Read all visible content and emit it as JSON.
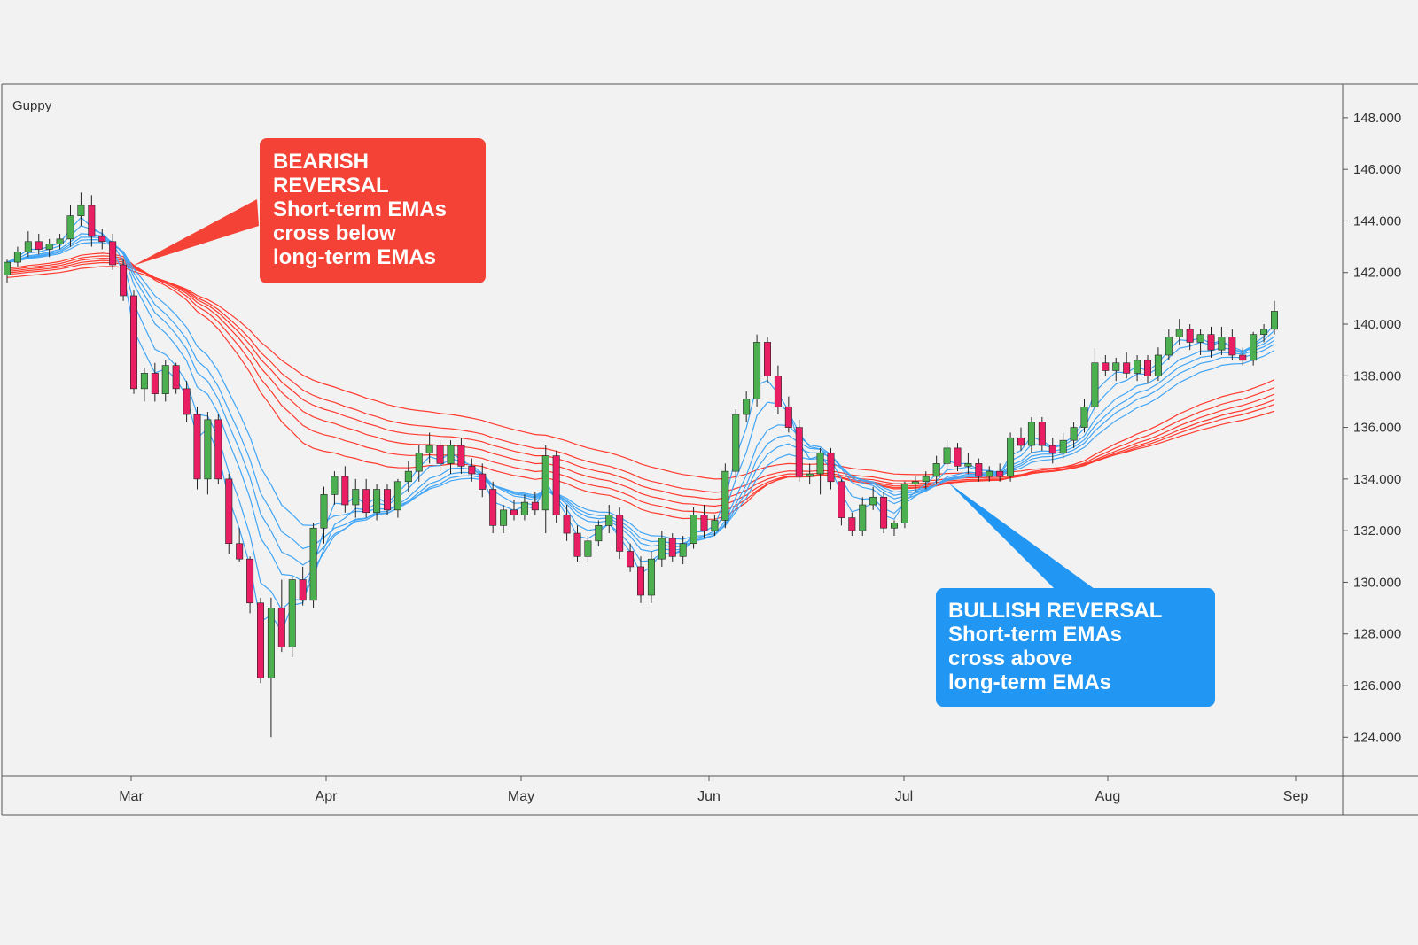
{
  "chart_data": {
    "type": "candlestick",
    "title": "Guppy",
    "y_axis": {
      "ticks": [
        "148.000",
        "146.000",
        "144.000",
        "142.000",
        "140.000",
        "138.000",
        "136.000",
        "134.000",
        "132.000",
        "130.000",
        "128.000",
        "126.000",
        "124.000"
      ],
      "range": [
        122.5,
        149.3
      ]
    },
    "x_axis": {
      "ticks": [
        "Mar",
        "Apr",
        "May",
        "Jun",
        "Jul",
        "Aug",
        "Sep"
      ]
    },
    "ohlc_estimated_daily": [
      [
        141.9,
        142.5,
        141.6,
        142.4
      ],
      [
        142.4,
        143.0,
        142.2,
        142.8
      ],
      [
        142.8,
        143.6,
        142.6,
        143.2
      ],
      [
        143.2,
        143.5,
        142.7,
        142.9
      ],
      [
        142.9,
        143.3,
        142.6,
        143.1
      ],
      [
        143.1,
        143.5,
        142.9,
        143.3
      ],
      [
        143.3,
        144.6,
        143.0,
        144.2
      ],
      [
        144.2,
        145.1,
        143.8,
        144.6
      ],
      [
        144.6,
        145.0,
        143.0,
        143.4
      ],
      [
        143.4,
        143.7,
        142.9,
        143.2
      ],
      [
        143.2,
        143.5,
        142.1,
        142.3
      ],
      [
        142.3,
        142.5,
        140.9,
        141.1
      ],
      [
        141.1,
        141.3,
        137.3,
        137.5
      ],
      [
        137.5,
        138.3,
        137.0,
        138.1
      ],
      [
        138.1,
        138.5,
        137.0,
        137.3
      ],
      [
        137.3,
        138.6,
        137.0,
        138.4
      ],
      [
        138.4,
        138.5,
        137.3,
        137.5
      ],
      [
        137.5,
        137.8,
        136.2,
        136.5
      ],
      [
        136.5,
        136.8,
        133.6,
        134.0
      ],
      [
        134.0,
        136.6,
        133.4,
        136.3
      ],
      [
        136.3,
        136.5,
        133.8,
        134.0
      ],
      [
        134.0,
        134.2,
        131.1,
        131.5
      ],
      [
        131.5,
        132.1,
        130.8,
        130.9
      ],
      [
        130.9,
        131.0,
        128.8,
        129.2
      ],
      [
        129.2,
        129.4,
        126.1,
        126.3
      ],
      [
        126.3,
        129.4,
        124.0,
        129.0
      ],
      [
        129.0,
        130.1,
        127.3,
        127.5
      ],
      [
        127.5,
        130.2,
        127.1,
        130.1
      ],
      [
        130.1,
        130.6,
        129.1,
        129.3
      ],
      [
        129.3,
        132.3,
        129.0,
        132.1
      ],
      [
        132.1,
        133.7,
        131.5,
        133.4
      ],
      [
        133.4,
        134.3,
        133.0,
        134.1
      ],
      [
        134.1,
        134.5,
        132.7,
        133.0
      ],
      [
        133.0,
        134.0,
        132.5,
        133.6
      ],
      [
        133.6,
        134.0,
        132.5,
        132.7
      ],
      [
        132.7,
        133.8,
        132.4,
        133.6
      ],
      [
        133.6,
        133.8,
        132.6,
        132.8
      ],
      [
        132.8,
        134.0,
        132.5,
        133.9
      ],
      [
        133.9,
        134.7,
        133.5,
        134.3
      ],
      [
        134.3,
        135.3,
        133.9,
        135.0
      ],
      [
        135.0,
        135.8,
        134.6,
        135.3
      ],
      [
        135.3,
        135.5,
        134.3,
        134.6
      ],
      [
        134.6,
        135.5,
        134.2,
        135.3
      ],
      [
        135.3,
        135.6,
        134.2,
        134.5
      ],
      [
        134.5,
        134.8,
        133.9,
        134.2
      ],
      [
        134.2,
        134.6,
        133.3,
        133.6
      ],
      [
        133.6,
        133.9,
        131.9,
        132.2
      ],
      [
        132.2,
        133.0,
        131.9,
        132.8
      ],
      [
        132.8,
        133.2,
        132.4,
        132.6
      ],
      [
        132.6,
        133.4,
        132.4,
        133.1
      ],
      [
        133.1,
        133.5,
        132.6,
        132.8
      ],
      [
        132.8,
        135.3,
        131.9,
        134.9
      ],
      [
        134.9,
        135.1,
        132.3,
        132.6
      ],
      [
        132.6,
        133.0,
        131.6,
        131.9
      ],
      [
        131.9,
        132.2,
        130.8,
        131.0
      ],
      [
        131.0,
        131.8,
        130.8,
        131.6
      ],
      [
        131.6,
        132.4,
        131.4,
        132.2
      ],
      [
        132.2,
        133.0,
        131.9,
        132.6
      ],
      [
        132.6,
        132.9,
        130.9,
        131.2
      ],
      [
        131.2,
        131.5,
        130.4,
        130.6
      ],
      [
        130.6,
        131.0,
        129.2,
        129.5
      ],
      [
        129.5,
        131.2,
        129.2,
        130.9
      ],
      [
        130.9,
        132.0,
        130.6,
        131.7
      ],
      [
        131.7,
        131.9,
        130.8,
        131.0
      ],
      [
        131.0,
        131.8,
        130.7,
        131.5
      ],
      [
        131.5,
        132.9,
        131.3,
        132.6
      ],
      [
        132.6,
        133.0,
        131.7,
        132.0
      ],
      [
        132.0,
        132.6,
        131.8,
        132.4
      ],
      [
        132.4,
        134.6,
        132.1,
        134.3
      ],
      [
        134.3,
        136.7,
        134.0,
        136.5
      ],
      [
        136.5,
        137.4,
        136.2,
        137.1
      ],
      [
        137.1,
        139.6,
        136.8,
        139.3
      ],
      [
        139.3,
        139.5,
        137.7,
        138.0
      ],
      [
        138.0,
        138.4,
        136.5,
        136.8
      ],
      [
        136.8,
        137.2,
        135.8,
        136.0
      ],
      [
        136.0,
        136.3,
        133.9,
        134.1
      ],
      [
        134.1,
        134.6,
        133.8,
        134.2
      ],
      [
        134.2,
        135.2,
        133.4,
        135.0
      ],
      [
        135.0,
        135.2,
        133.6,
        133.9
      ],
      [
        133.9,
        134.0,
        132.2,
        132.5
      ],
      [
        132.5,
        132.7,
        131.8,
        132.0
      ],
      [
        132.0,
        133.3,
        131.8,
        133.0
      ],
      [
        133.0,
        133.7,
        132.8,
        133.3
      ],
      [
        133.3,
        133.5,
        131.9,
        132.1
      ],
      [
        132.1,
        132.4,
        131.8,
        132.3
      ],
      [
        132.3,
        133.9,
        132.1,
        133.8
      ],
      [
        133.8,
        134.1,
        133.5,
        133.9
      ],
      [
        133.9,
        134.3,
        133.6,
        134.1
      ],
      [
        134.1,
        134.9,
        133.8,
        134.6
      ],
      [
        134.6,
        135.5,
        134.4,
        135.2
      ],
      [
        135.2,
        135.4,
        134.3,
        134.5
      ],
      [
        134.5,
        135.0,
        134.2,
        134.6
      ],
      [
        134.6,
        134.8,
        133.9,
        134.1
      ],
      [
        134.1,
        134.5,
        133.9,
        134.3
      ],
      [
        134.3,
        134.6,
        133.9,
        134.1
      ],
      [
        134.1,
        135.8,
        133.9,
        135.6
      ],
      [
        135.6,
        136.0,
        135.1,
        135.3
      ],
      [
        135.3,
        136.4,
        135.0,
        136.2
      ],
      [
        136.2,
        136.4,
        135.1,
        135.3
      ],
      [
        135.3,
        135.6,
        134.6,
        135.0
      ],
      [
        135.0,
        135.8,
        134.8,
        135.5
      ],
      [
        135.5,
        136.2,
        135.2,
        136.0
      ],
      [
        136.0,
        137.1,
        135.8,
        136.8
      ],
      [
        136.8,
        139.1,
        136.5,
        138.5
      ],
      [
        138.5,
        138.8,
        138.0,
        138.2
      ],
      [
        138.2,
        138.7,
        137.8,
        138.5
      ],
      [
        138.5,
        138.9,
        137.9,
        138.1
      ],
      [
        138.1,
        138.8,
        137.8,
        138.6
      ],
      [
        138.6,
        138.8,
        137.7,
        138.0
      ],
      [
        138.0,
        139.1,
        137.8,
        138.8
      ],
      [
        138.8,
        139.8,
        138.6,
        139.5
      ],
      [
        139.5,
        140.2,
        139.2,
        139.8
      ],
      [
        139.8,
        140.0,
        139.0,
        139.3
      ],
      [
        139.3,
        139.8,
        138.8,
        139.6
      ],
      [
        139.6,
        139.9,
        138.7,
        139.0
      ],
      [
        139.0,
        139.9,
        138.8,
        139.5
      ],
      [
        139.5,
        139.8,
        138.6,
        138.8
      ],
      [
        138.8,
        139.1,
        138.4,
        138.6
      ],
      [
        138.6,
        139.7,
        138.4,
        139.6
      ],
      [
        139.6,
        140.0,
        139.3,
        139.8
      ],
      [
        139.8,
        140.9,
        139.6,
        140.5
      ]
    ],
    "series": [
      {
        "name": "",
        "values": []
      },
      {
        "name": "",
        "values": []
      }
    ],
    "colors": {
      "bull": "#4caf50",
      "bear": "#e91e63",
      "ema_short": "#42a5f5",
      "ema_long": "#ff3b30",
      "axis": "#555555",
      "grid": "none",
      "background": "#f2f2f2"
    },
    "annotations": {
      "bearish": {
        "lines": [
          "BEARISH",
          "REVERSAL",
          "Short-term EMAs",
          "cross below",
          "long-term EMAs"
        ],
        "color": "#f44336"
      },
      "bullish": {
        "lines": [
          "BULLISH REVERSAL",
          "Short-term EMAs",
          "cross above",
          "long-term EMAs"
        ],
        "color": "#2196f3"
      }
    }
  }
}
